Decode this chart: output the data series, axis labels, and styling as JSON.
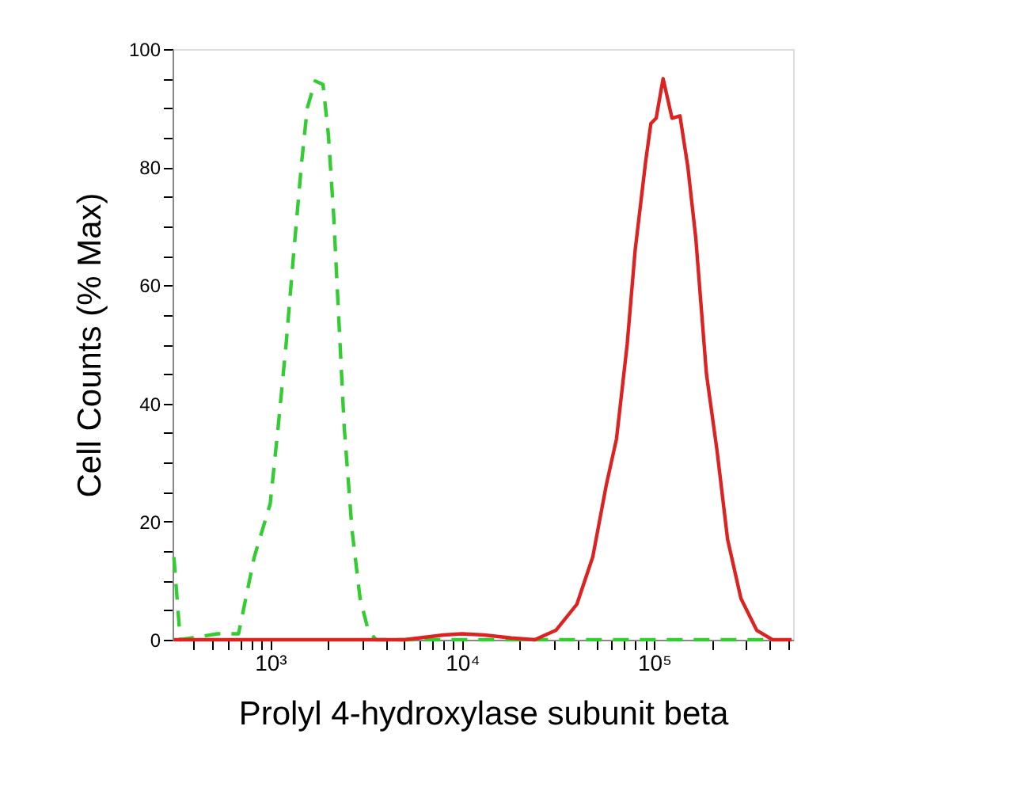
{
  "chart_data": {
    "type": "line",
    "xlabel": "Prolyl 4-hydroxylase subunit beta",
    "ylabel": "Cell Counts (% Max)",
    "log": "x",
    "grid": false,
    "marker": "none",
    "xlim": [
      310,
      530000
    ],
    "ylim": [
      0,
      100
    ],
    "xticks": [
      {
        "value": 400,
        "label": null
      },
      {
        "value": 500,
        "label": null
      },
      {
        "value": 600,
        "label": null
      },
      {
        "value": 700,
        "label": null
      },
      {
        "value": 800,
        "label": null
      },
      {
        "value": 900,
        "label": null
      },
      {
        "value": 1000,
        "label": "10³"
      },
      {
        "value": 2000,
        "label": null
      },
      {
        "value": 3000,
        "label": null
      },
      {
        "value": 4000,
        "label": null
      },
      {
        "value": 5000,
        "label": null
      },
      {
        "value": 6000,
        "label": null
      },
      {
        "value": 7000,
        "label": null
      },
      {
        "value": 8000,
        "label": null
      },
      {
        "value": 9000,
        "label": null
      },
      {
        "value": 10000,
        "label": "10⁴"
      },
      {
        "value": 20000,
        "label": null
      },
      {
        "value": 30000,
        "label": null
      },
      {
        "value": 40000,
        "label": null
      },
      {
        "value": 50000,
        "label": null
      },
      {
        "value": 60000,
        "label": null
      },
      {
        "value": 70000,
        "label": null
      },
      {
        "value": 80000,
        "label": null
      },
      {
        "value": 90000,
        "label": null
      },
      {
        "value": 100000,
        "label": "10⁵"
      },
      {
        "value": 200000,
        "label": null
      },
      {
        "value": 300000,
        "label": null
      },
      {
        "value": 400000,
        "label": null
      },
      {
        "value": 500000,
        "label": null
      }
    ],
    "yticks": [
      0,
      {
        "value": 5,
        "label": null
      },
      {
        "value": 10,
        "label": null
      },
      {
        "value": 15,
        "label": null
      },
      20,
      {
        "value": 25,
        "label": null
      },
      {
        "value": 30,
        "label": null
      },
      {
        "value": 35,
        "label": null
      },
      40,
      {
        "value": 45,
        "label": null
      },
      {
        "value": 50,
        "label": null
      },
      {
        "value": 55,
        "label": null
      },
      60,
      {
        "value": 65,
        "label": null
      },
      {
        "value": 70,
        "label": null
      },
      {
        "value": 75,
        "label": null
      },
      80,
      {
        "value": 85,
        "label": null
      },
      {
        "value": 90,
        "label": null
      },
      {
        "value": 95,
        "label": null
      },
      100
    ],
    "series": [
      {
        "color": "#33cc33",
        "line_style": "dashed",
        "x": [
          315,
          340,
          530,
          684,
          826,
          1000,
          1100,
          1210,
          1330,
          1460,
          1560,
          1715,
          1885,
          2010,
          2140,
          2280,
          2430,
          2670,
          2940,
          3240,
          3560,
          10000,
          100000,
          400000
        ],
        "values": [
          14,
          0,
          1,
          1,
          14,
          23,
          36,
          50,
          66,
          81,
          90,
          94.6,
          94,
          85.5,
          72,
          54,
          36,
          18.5,
          7,
          1.6,
          0,
          0,
          0,
          0
        ]
      },
      {
        "color": "#dd2222",
        "line_style": "solid",
        "x": [
          315,
          3130,
          5000,
          8000,
          10000,
          13000,
          18000,
          23900,
          30800,
          39600,
          47900,
          56200,
          63700,
          72400,
          79700,
          90400,
          96200,
          102500,
          111400,
          124000,
          136400,
          150000,
          164900,
          187400,
          212800,
          241500,
          283300,
          342500,
          414000,
          520000
        ],
        "values": [
          0,
          0,
          0,
          0.8,
          1,
          0.8,
          0.3,
          0,
          1.6,
          6,
          14,
          26,
          34,
          50,
          66,
          81,
          87.4,
          88.3,
          95,
          88.3,
          88.7,
          80,
          68,
          45,
          32,
          17,
          7,
          1.6,
          0,
          0
        ]
      }
    ]
  }
}
